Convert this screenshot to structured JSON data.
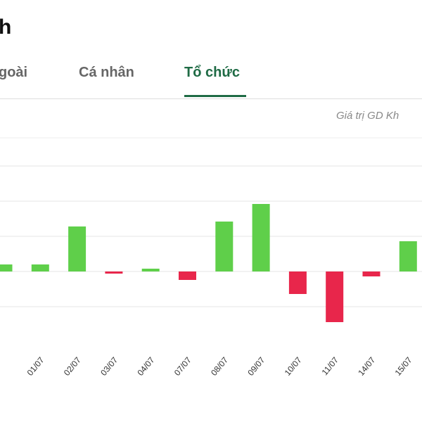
{
  "header": {
    "title": "h",
    "tabs": [
      "goài",
      "Cá nhân",
      "Tổ chức"
    ],
    "note": "Giá trị GD Kh"
  },
  "chart_data": {
    "type": "bar",
    "categories": [
      null,
      "01/07",
      "02/07",
      "03/07",
      "04/07",
      "07/07",
      "08/07",
      "09/07",
      "10/07",
      "11/07",
      "14/07",
      "15/07",
      null
    ],
    "values": [
      0.2,
      0.2,
      1.28,
      -0.06,
      0.08,
      -0.24,
      1.42,
      1.92,
      -0.64,
      -1.44,
      -0.14,
      0.86,
      null
    ],
    "positive_color": "#5fcf4a",
    "negative_color": "#e8264b",
    "ylim": [
      -2,
      4
    ],
    "yticks": [
      -1,
      0,
      1,
      2,
      3
    ],
    "grid": true
  }
}
